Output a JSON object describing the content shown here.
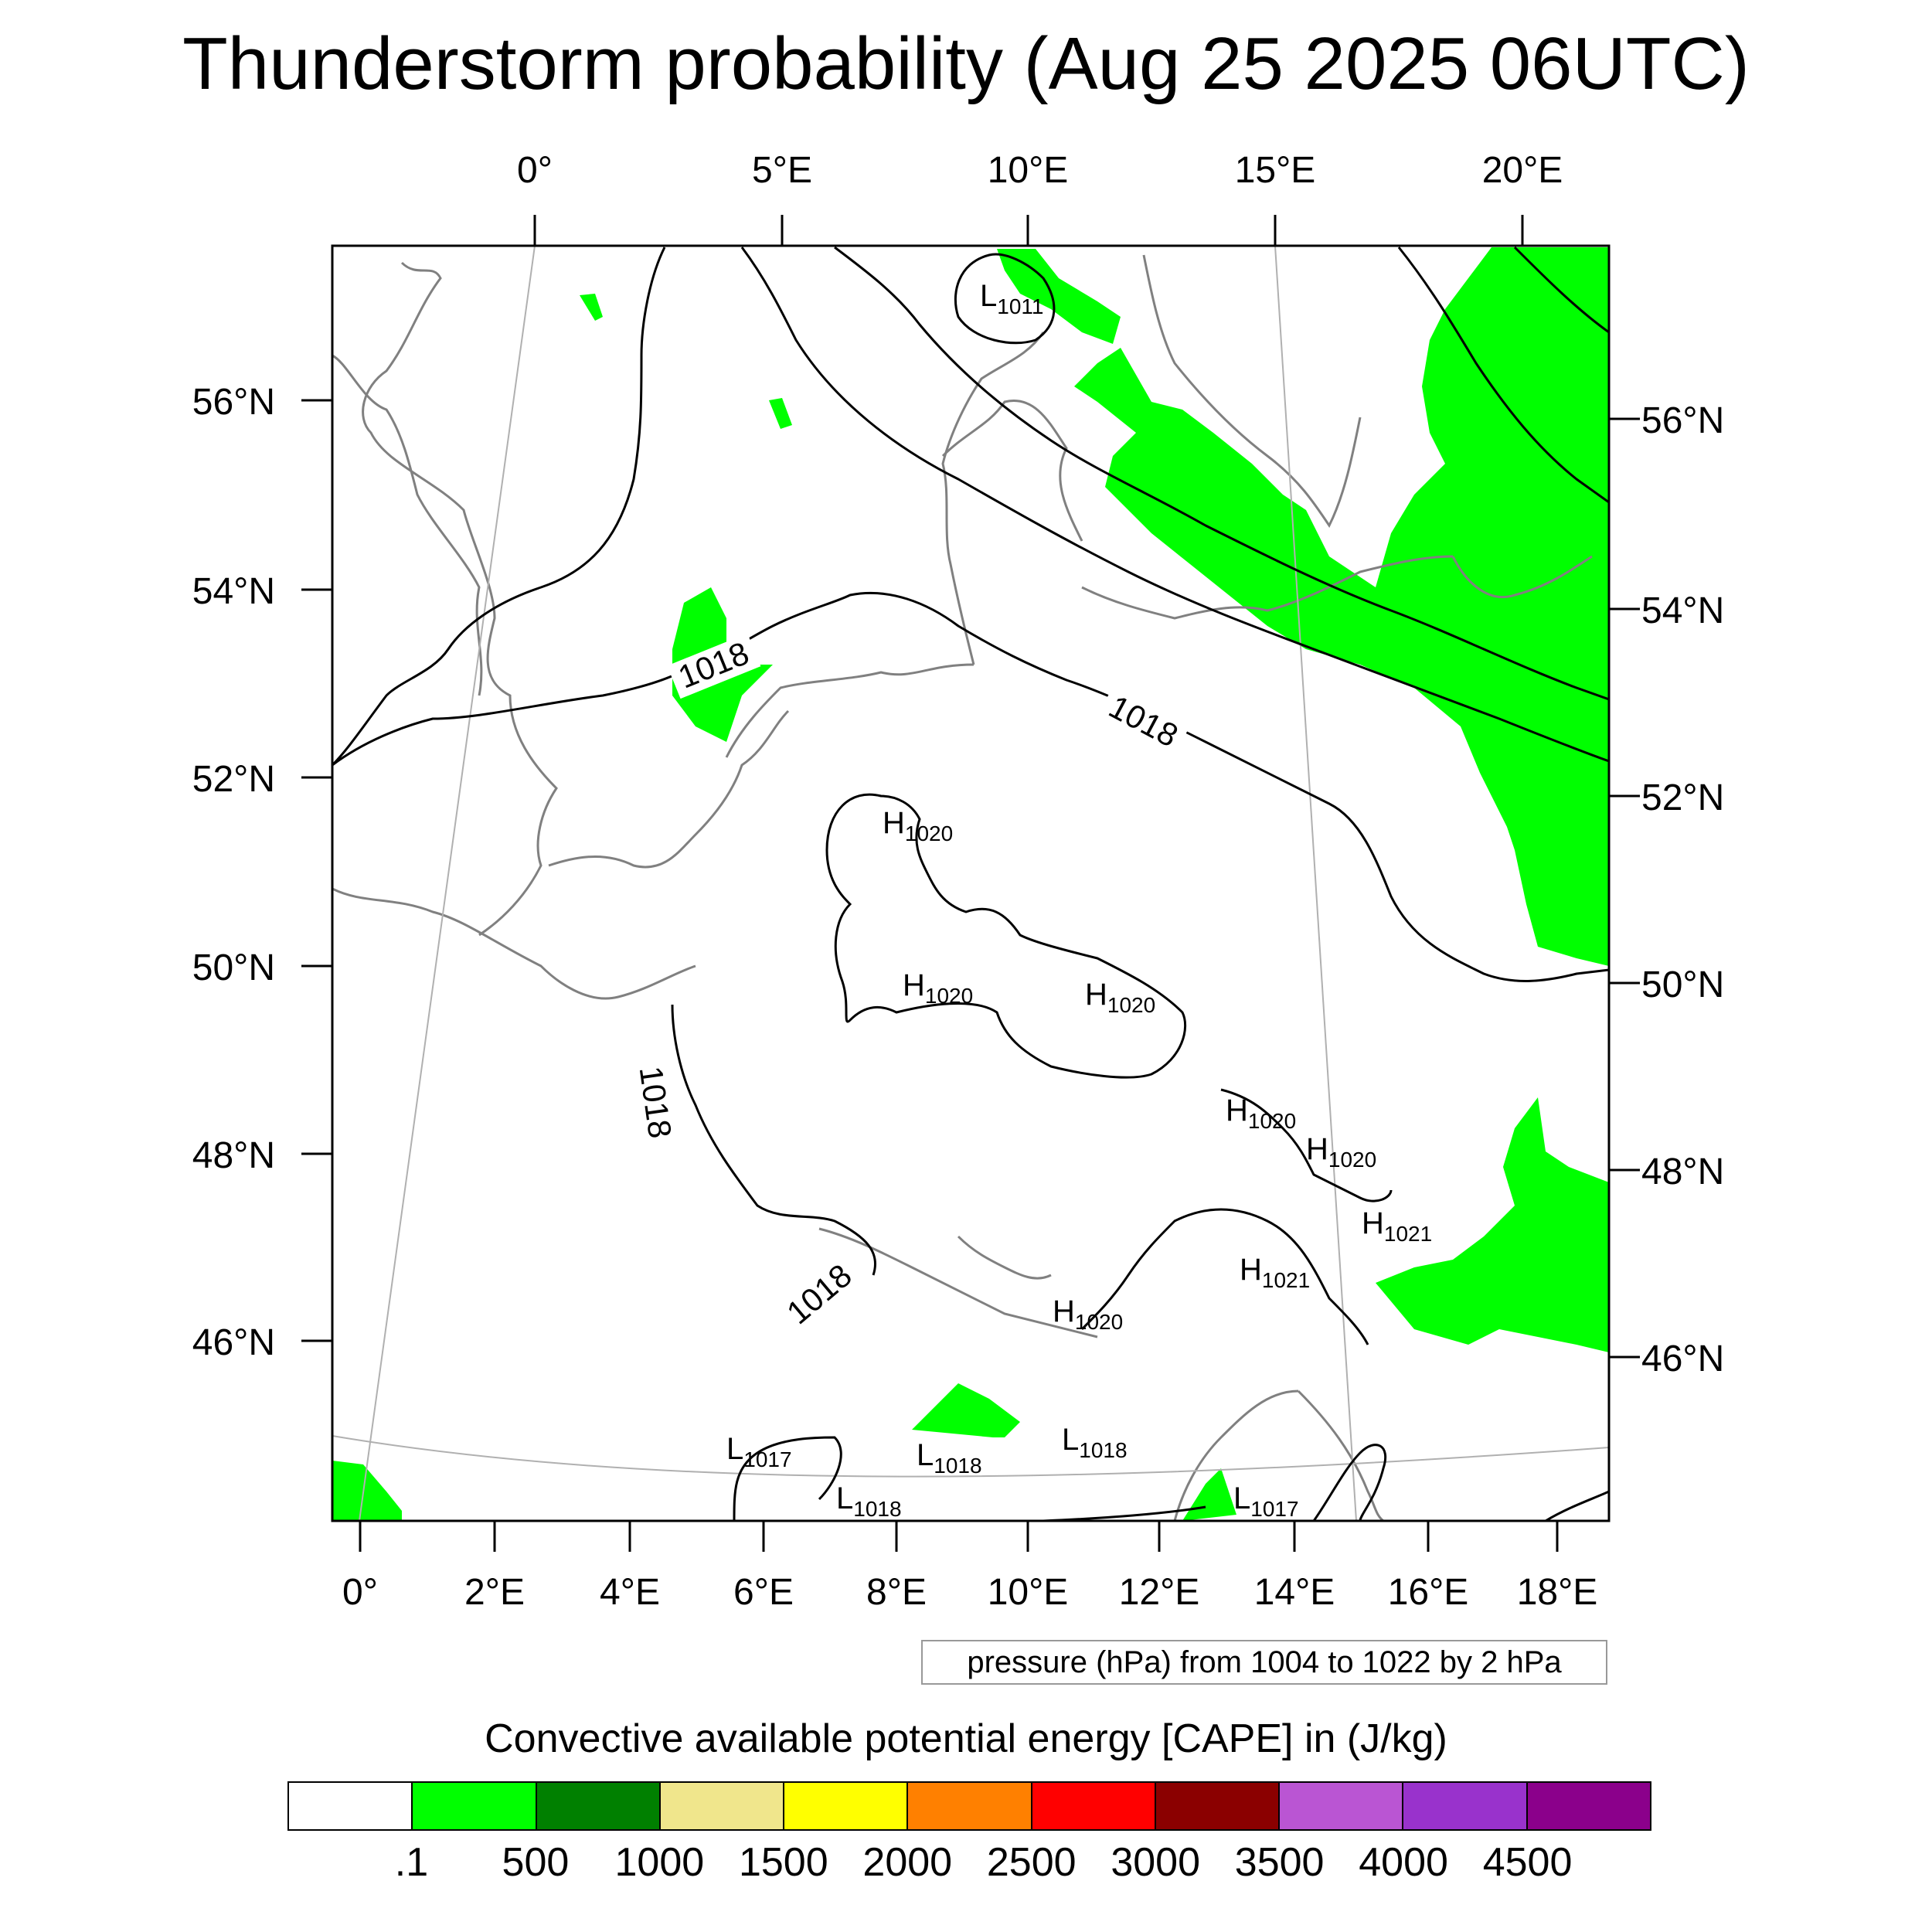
{
  "title": "Thunderstorm probability (Aug 25 2025 06UTC)",
  "map": {
    "top_lon_labels": [
      "0°",
      "5°E",
      "10°E",
      "15°E",
      "20°E"
    ],
    "bottom_lon_labels": [
      "0°",
      "2°E",
      "4°E",
      "6°E",
      "8°E",
      "10°E",
      "12°E",
      "14°E",
      "16°E",
      "18°E"
    ],
    "left_lat_labels": [
      "56°N",
      "54°N",
      "52°N",
      "50°N",
      "48°N",
      "46°N"
    ],
    "right_lat_labels": [
      "56°N",
      "54°N",
      "52°N",
      "50°N",
      "48°N",
      "46°N"
    ],
    "contour_labels": [
      "1018",
      "1018",
      "1018",
      "1018"
    ],
    "pressure_centers": [
      {
        "letter": "L",
        "value": "1011"
      },
      {
        "letter": "H",
        "value": "1020"
      },
      {
        "letter": "H",
        "value": "1020"
      },
      {
        "letter": "H",
        "value": "1020"
      },
      {
        "letter": "H",
        "value": "1020"
      },
      {
        "letter": "H",
        "value": "1020"
      },
      {
        "letter": "H",
        "value": "1021"
      },
      {
        "letter": "H",
        "value": "1021"
      },
      {
        "letter": "H",
        "value": "1020"
      },
      {
        "letter": "L",
        "value": "1017"
      },
      {
        "letter": "L",
        "value": "1018"
      },
      {
        "letter": "L",
        "value": "1018"
      },
      {
        "letter": "L",
        "value": "1018"
      },
      {
        "letter": "L",
        "value": "1017"
      }
    ],
    "cape_color": "#00ff00",
    "contour_color": "#000000",
    "coastline_color": "#808080"
  },
  "pressure_note": "pressure (hPa) from 1004 to 1022 by 2 hPa",
  "colorbar": {
    "title": "Convective available potential energy [CAPE] in (J/kg)",
    "colors": [
      "#ffffff",
      "#00ff00",
      "#008000",
      "#f0e68c",
      "#ffff00",
      "#ff8000",
      "#ff0000",
      "#8b0000",
      "#ba55d3",
      "#9932cc",
      "#8b008b"
    ],
    "labels": [
      ".1",
      "500",
      "1000",
      "1500",
      "2000",
      "2500",
      "3000",
      "3500",
      "4000",
      "4500"
    ]
  }
}
